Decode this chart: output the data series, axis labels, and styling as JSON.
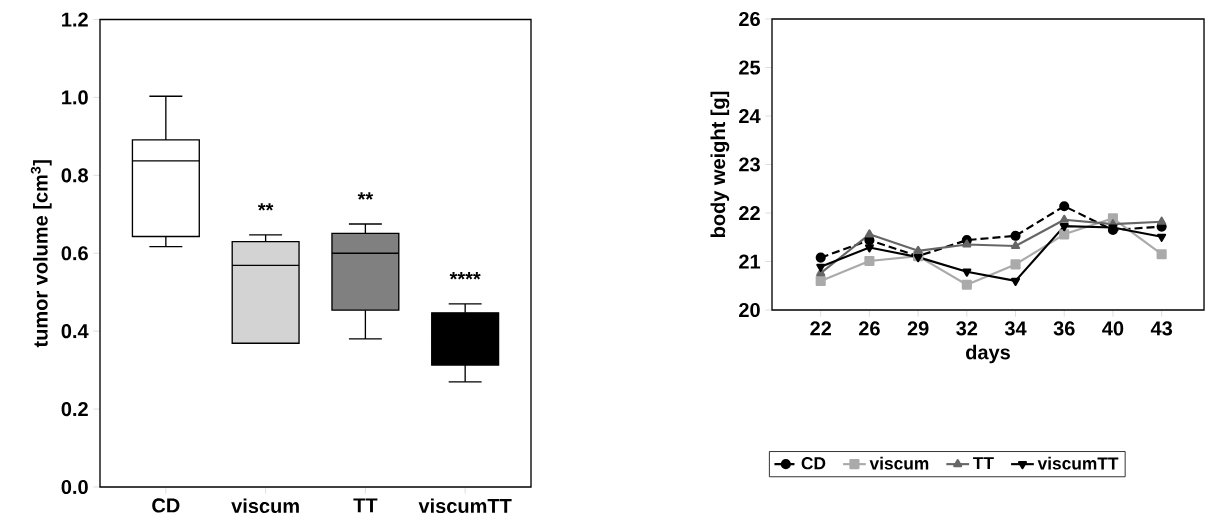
{
  "chart_data": [
    {
      "type": "box",
      "ylabel": "tumor volume [cm$^{3}$]",
      "categories": [
        "CD",
        "viscum",
        "TT",
        "viscumTT"
      ],
      "boxes": [
        {
          "low": 0.617,
          "q1": 0.643,
          "median": 0.837,
          "q3": 0.891,
          "high": 1.003
        },
        {
          "low": 0.369,
          "q1": 0.369,
          "median": 0.569,
          "q3": 0.63,
          "high": 0.647
        },
        {
          "low": 0.38,
          "q1": 0.454,
          "median": 0.6,
          "q3": 0.651,
          "high": 0.675
        },
        {
          "low": 0.27,
          "q1": 0.313,
          "median": 0.38,
          "q3": 0.447,
          "high": 0.47
        }
      ],
      "colors": [
        "#ffffff",
        "#d3d3d3",
        "#808080",
        "#000000"
      ],
      "ylim": [
        0,
        1.2
      ],
      "yticks": [
        {
          "value": 0,
          "label": "0.0"
        },
        0.2,
        0.4,
        0.6,
        0.8,
        {
          "value": 1.0,
          "label": "1.0"
        },
        1.2
      ],
      "annotations": [
        {
          "text": "**",
          "x": "viscum",
          "y": 0.647
        },
        {
          "text": "**",
          "x": "TT",
          "y": 0.675
        },
        {
          "text": "****",
          "x": "viscumTT",
          "y": 0.47
        }
      ]
    },
    {
      "type": "line",
      "xlabel": "days",
      "ylabel": "body weight [g]",
      "categories": [
        "22",
        "26",
        "29",
        "32",
        "34",
        "36",
        "40",
        "43"
      ],
      "series": [
        {
          "name": "CD",
          "color": "#000000",
          "marker": "circle",
          "line_style": "dashed",
          "values": [
            21.08,
            21.44,
            21.11,
            21.44,
            21.53,
            22.14,
            21.65,
            21.72
          ]
        },
        {
          "name": "viscum",
          "color": "#aaaaaa",
          "marker": "square",
          "line_style": "solid",
          "values": [
            20.6,
            21.01,
            21.11,
            20.52,
            20.94,
            21.56,
            21.89,
            21.15
          ]
        },
        {
          "name": "TT",
          "color": "#666666",
          "marker": "triangle",
          "line_style": "solid",
          "values": [
            20.76,
            21.56,
            21.22,
            21.35,
            21.32,
            21.86,
            21.77,
            21.82
          ]
        },
        {
          "name": "viscumTT",
          "color": "#000000",
          "marker": "triangle",
          "line_style": "solid",
          "values": [
            20.89,
            21.29,
            21.09,
            20.79,
            20.6,
            21.73,
            21.7,
            21.51
          ]
        }
      ],
      "ylim": [
        20,
        26
      ],
      "yticks": [
        20,
        21,
        22,
        23,
        24,
        25,
        26
      ],
      "legend": "bottom"
    }
  ]
}
